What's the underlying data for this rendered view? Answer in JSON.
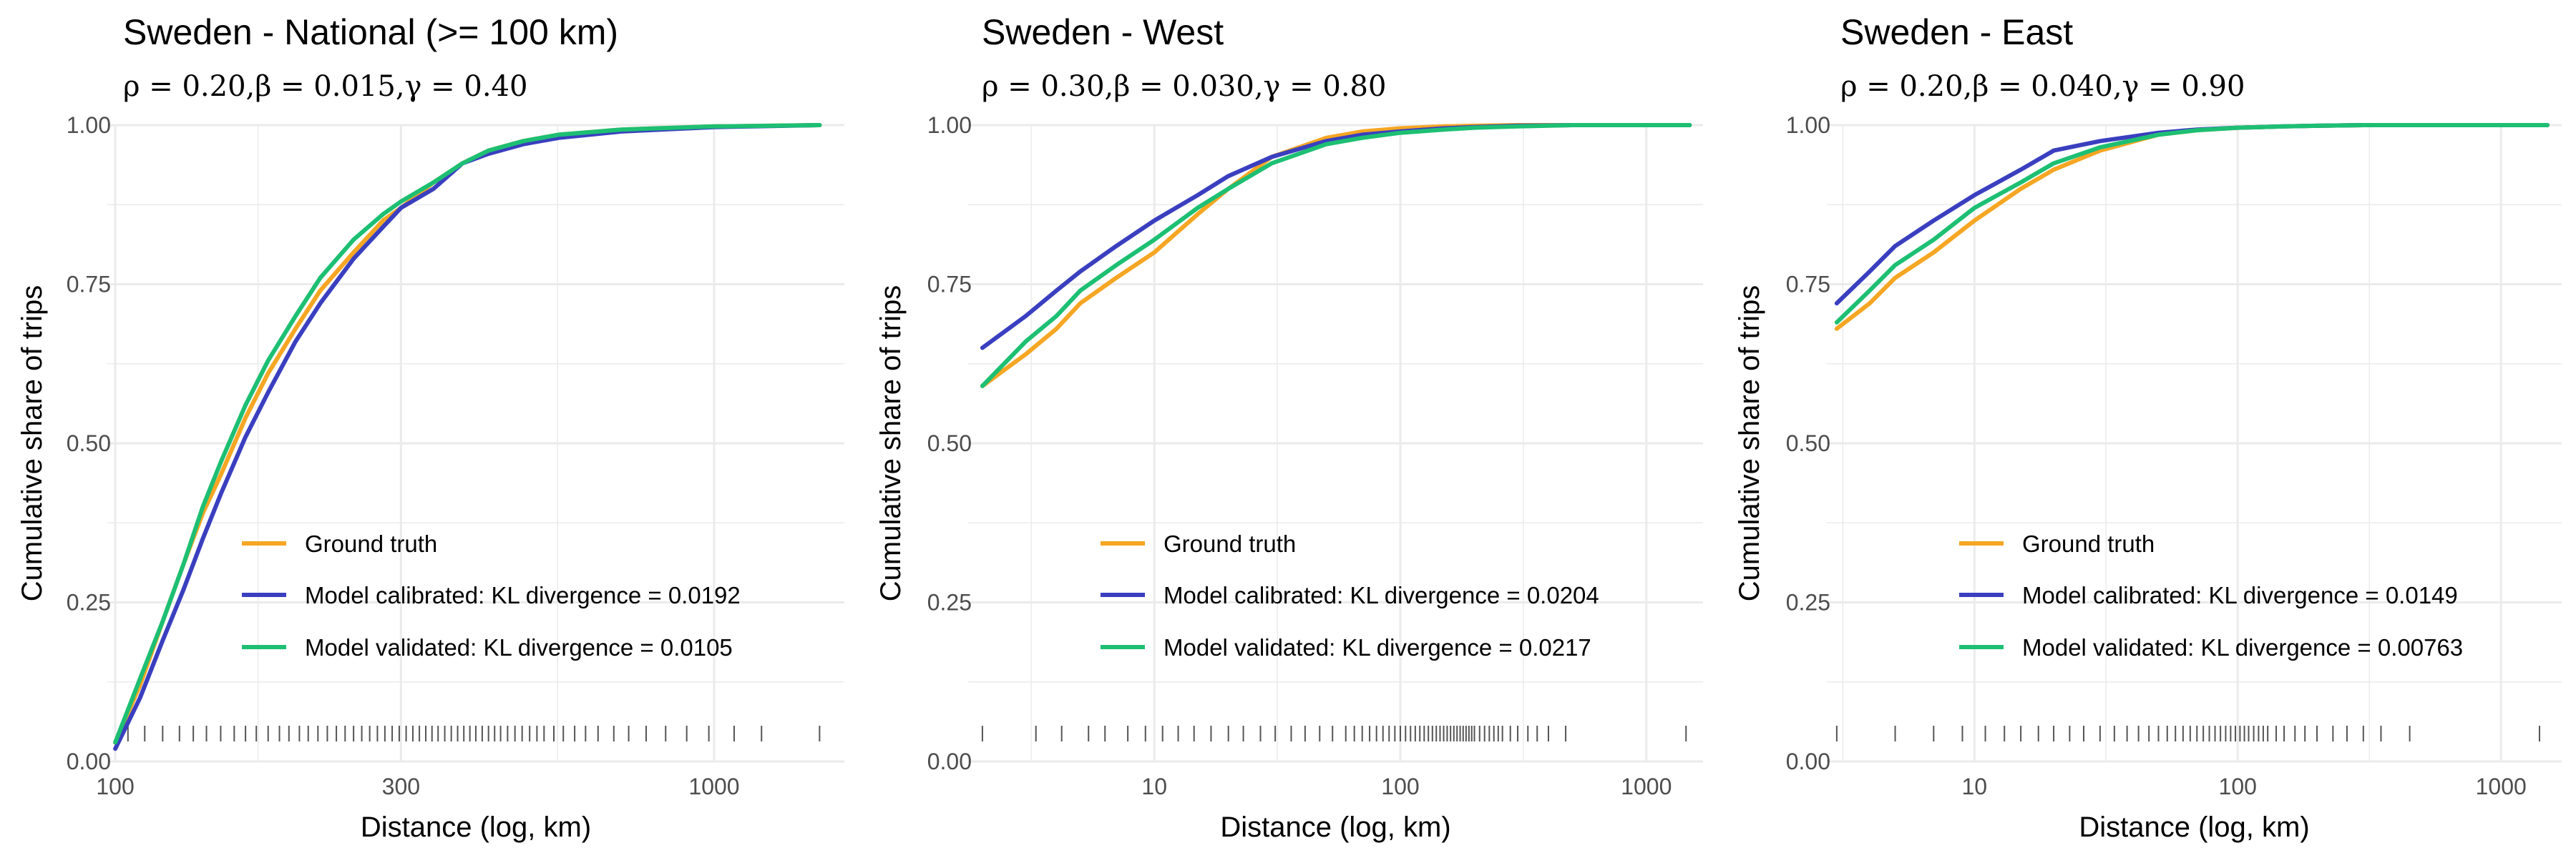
{
  "colors": {
    "ground_truth": "#F5A623",
    "model_calibrated": "#3A3FBF",
    "model_validated": "#1DBF73",
    "grid": "#EBEBEB",
    "rug": "#555555"
  },
  "chart_data": [
    {
      "type": "line",
      "title": "Sweden - National (>= 100 km)",
      "subtitle": "ρ = 0.20,β = 0.015,γ = 0.40",
      "xlabel": "Distance (log, km)",
      "ylabel": "Cumulative share of trips",
      "xscale": "log",
      "xlim": [
        97,
        1650
      ],
      "ylim": [
        0,
        1
      ],
      "xticks": [
        100,
        300,
        1000
      ],
      "xtick_labels": [
        "100",
        "300",
        "1000"
      ],
      "yticks": [
        0,
        0.25,
        0.5,
        0.75,
        1
      ],
      "ytick_labels": [
        "0.00",
        "0.25",
        "0.50",
        "0.75",
        "1.00"
      ],
      "grid": true,
      "legend_position": "bottom-center",
      "legend_entries": [
        "Ground truth",
        "Model calibrated: KL divergence = 0.0192",
        "Model validated: KL divergence = 0.0105"
      ],
      "series": [
        {
          "name": "Ground truth",
          "x": [
            100,
            110,
            120,
            130,
            140,
            150,
            165,
            180,
            200,
            220,
            250,
            280,
            300,
            340,
            380,
            420,
            480,
            550,
            700,
            1000,
            1500
          ],
          "y": [
            0.03,
            0.12,
            0.22,
            0.31,
            0.39,
            0.45,
            0.54,
            0.61,
            0.68,
            0.74,
            0.8,
            0.85,
            0.87,
            0.91,
            0.94,
            0.96,
            0.975,
            0.985,
            0.993,
            0.998,
            1.0
          ]
        },
        {
          "name": "Model calibrated: KL divergence = 0.0192",
          "x": [
            100,
            110,
            120,
            130,
            140,
            150,
            165,
            180,
            200,
            220,
            250,
            280,
            300,
            340,
            380,
            420,
            480,
            550,
            700,
            1000,
            1500
          ],
          "y": [
            0.02,
            0.1,
            0.19,
            0.27,
            0.35,
            0.42,
            0.51,
            0.58,
            0.66,
            0.72,
            0.79,
            0.84,
            0.87,
            0.9,
            0.94,
            0.955,
            0.97,
            0.98,
            0.99,
            0.997,
            1.0
          ]
        },
        {
          "name": "Model validated: KL divergence = 0.0105",
          "x": [
            100,
            110,
            120,
            130,
            140,
            150,
            165,
            180,
            200,
            220,
            250,
            280,
            300,
            340,
            380,
            420,
            480,
            550,
            700,
            1000,
            1500
          ],
          "y": [
            0.03,
            0.13,
            0.22,
            0.31,
            0.4,
            0.47,
            0.56,
            0.63,
            0.7,
            0.76,
            0.82,
            0.86,
            0.88,
            0.91,
            0.94,
            0.96,
            0.975,
            0.985,
            0.993,
            0.998,
            1.0
          ]
        }
      ],
      "rug_x": [
        105,
        112,
        120,
        128,
        135,
        142,
        150,
        158,
        165,
        172,
        180,
        188,
        195,
        203,
        210,
        218,
        226,
        234,
        242,
        250,
        258,
        266,
        274,
        282,
        290,
        298,
        306,
        314,
        322,
        330,
        338,
        346,
        355,
        364,
        373,
        382,
        391,
        400,
        410,
        420,
        430,
        440,
        452,
        465,
        478,
        492,
        506,
        520,
        540,
        560,
        585,
        610,
        640,
        680,
        720,
        770,
        830,
        900,
        980,
        1080,
        1200,
        1500
      ]
    },
    {
      "type": "line",
      "title": "Sweden - West",
      "subtitle": "ρ = 0.30,β = 0.030,γ = 0.80",
      "xlabel": "Distance (log, km)",
      "ylabel": "Cumulative share of trips",
      "xscale": "log",
      "xlim": [
        1.75,
        1700
      ],
      "ylim": [
        0,
        1
      ],
      "xticks": [
        10,
        100,
        1000
      ],
      "xtick_labels": [
        "10",
        "100",
        "1000"
      ],
      "yticks": [
        0,
        0.25,
        0.5,
        0.75,
        1
      ],
      "ytick_labels": [
        "0.00",
        "0.25",
        "0.50",
        "0.75",
        "1.00"
      ],
      "grid": true,
      "legend_position": "bottom-center",
      "legend_entries": [
        "Ground truth",
        "Model calibrated: KL divergence = 0.0204",
        "Model validated: KL divergence = 0.0217"
      ],
      "series": [
        {
          "name": "Ground truth",
          "x": [
            2,
            3,
            4,
            5,
            7,
            10,
            15,
            20,
            30,
            50,
            70,
            100,
            150,
            200,
            300,
            500,
            1000,
            1500
          ],
          "y": [
            0.59,
            0.64,
            0.68,
            0.72,
            0.76,
            0.8,
            0.86,
            0.9,
            0.95,
            0.98,
            0.99,
            0.995,
            0.998,
            0.999,
            1.0,
            1.0,
            1.0,
            1.0
          ]
        },
        {
          "name": "Model calibrated: KL divergence = 0.0204",
          "x": [
            2,
            3,
            4,
            5,
            7,
            10,
            15,
            20,
            30,
            50,
            70,
            100,
            150,
            200,
            300,
            500,
            1000,
            1500
          ],
          "y": [
            0.65,
            0.7,
            0.74,
            0.77,
            0.81,
            0.85,
            0.89,
            0.92,
            0.95,
            0.975,
            0.985,
            0.99,
            0.995,
            0.997,
            0.999,
            1.0,
            1.0,
            1.0
          ]
        },
        {
          "name": "Model validated: KL divergence = 0.0217",
          "x": [
            2,
            3,
            4,
            5,
            7,
            10,
            15,
            20,
            30,
            50,
            70,
            100,
            150,
            200,
            300,
            500,
            1000,
            1500
          ],
          "y": [
            0.59,
            0.66,
            0.7,
            0.74,
            0.78,
            0.82,
            0.87,
            0.9,
            0.94,
            0.97,
            0.98,
            0.988,
            0.993,
            0.996,
            0.998,
            1.0,
            1.0,
            1.0
          ]
        }
      ],
      "rug_x": [
        2,
        3.3,
        4.2,
        5.4,
        6.3,
        7.8,
        9.2,
        10.8,
        12.5,
        14.5,
        17,
        20,
        23,
        27,
        31,
        36,
        41,
        47,
        53,
        60,
        65,
        70,
        75,
        80,
        85,
        90,
        95,
        100,
        105,
        110,
        115,
        120,
        125,
        130,
        135,
        140,
        145,
        150,
        155,
        160,
        165,
        170,
        175,
        180,
        185,
        190,
        195,
        200,
        210,
        220,
        230,
        240,
        250,
        260,
        280,
        300,
        330,
        360,
        400,
        470,
        1450
      ]
    },
    {
      "type": "line",
      "title": "Sweden - East",
      "subtitle": "ρ = 0.20,β = 0.040,γ = 0.90",
      "xlabel": "Distance (log, km)",
      "ylabel": "Cumulative share of trips",
      "xscale": "log",
      "xlim": [
        2.75,
        1700
      ],
      "ylim": [
        0,
        1
      ],
      "xticks": [
        10,
        100,
        1000
      ],
      "xtick_labels": [
        "10",
        "100",
        "1000"
      ],
      "yticks": [
        0,
        0.25,
        0.5,
        0.75,
        1
      ],
      "ytick_labels": [
        "0.00",
        "0.25",
        "0.50",
        "0.75",
        "1.00"
      ],
      "grid": true,
      "legend_position": "bottom-center",
      "legend_entries": [
        "Ground truth",
        "Model calibrated: KL divergence = 0.0149",
        "Model validated: KL divergence = 0.00763"
      ],
      "series": [
        {
          "name": "Ground truth",
          "x": [
            3,
            4,
            5,
            7,
            10,
            15,
            20,
            30,
            50,
            70,
            100,
            150,
            200,
            300,
            500,
            1000,
            1500
          ],
          "y": [
            0.68,
            0.72,
            0.76,
            0.8,
            0.85,
            0.9,
            0.93,
            0.96,
            0.985,
            0.992,
            0.996,
            0.998,
            0.999,
            1.0,
            1.0,
            1.0,
            1.0
          ]
        },
        {
          "name": "Model calibrated: KL divergence = 0.0149",
          "x": [
            3,
            4,
            5,
            7,
            10,
            15,
            20,
            30,
            50,
            70,
            100,
            150,
            200,
            300,
            500,
            1000,
            1500
          ],
          "y": [
            0.72,
            0.77,
            0.81,
            0.85,
            0.89,
            0.93,
            0.96,
            0.975,
            0.988,
            0.993,
            0.996,
            0.998,
            0.999,
            1.0,
            1.0,
            1.0,
            1.0
          ]
        },
        {
          "name": "Model validated: KL divergence = 0.00763",
          "x": [
            3,
            4,
            5,
            7,
            10,
            15,
            20,
            30,
            50,
            70,
            100,
            150,
            200,
            300,
            500,
            1000,
            1500
          ],
          "y": [
            0.69,
            0.74,
            0.78,
            0.82,
            0.87,
            0.91,
            0.94,
            0.965,
            0.985,
            0.992,
            0.996,
            0.998,
            0.999,
            1.0,
            1.0,
            1.0,
            1.0
          ]
        }
      ],
      "rug_x": [
        3,
        5,
        7,
        9,
        11,
        13,
        15,
        17.5,
        20,
        23,
        26,
        30,
        34,
        38,
        42,
        46,
        50,
        54,
        58,
        62,
        66,
        70,
        74,
        78,
        82,
        86,
        90,
        94,
        98,
        102,
        106,
        110,
        115,
        120,
        125,
        130,
        140,
        150,
        165,
        180,
        200,
        230,
        260,
        300,
        350,
        450,
        1400
      ]
    }
  ]
}
